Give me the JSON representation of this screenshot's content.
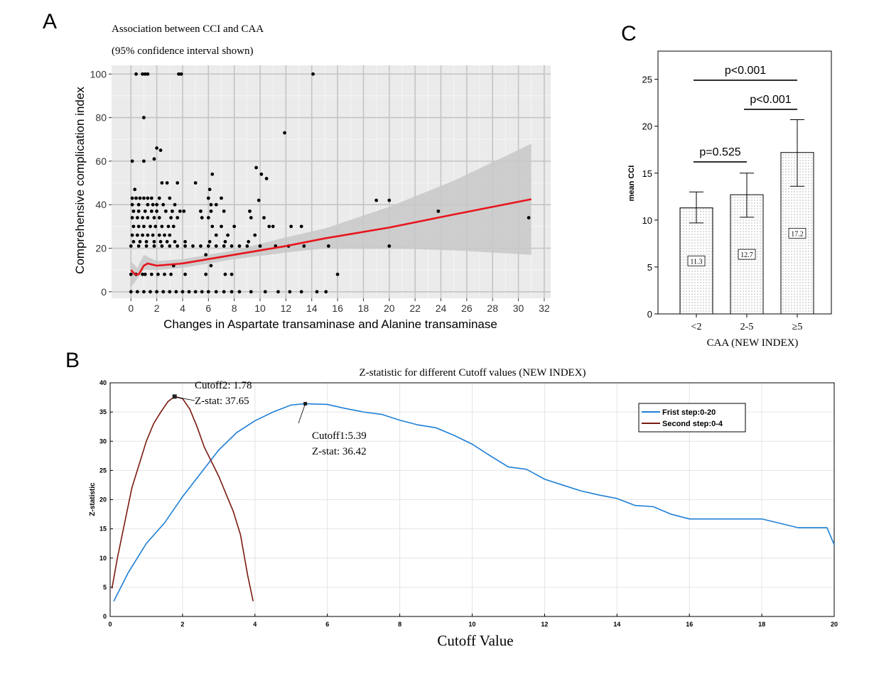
{
  "panel_letters": {
    "a": "A",
    "b": "B",
    "c": "C"
  },
  "chart_data": [
    {
      "panel": "A",
      "type": "scatter",
      "title": "Association between CCI and CAA",
      "subtitle": "(95% confidence interval shown)",
      "xlabel": "Changes in Aspartate transaminase and Alanine transaminase",
      "ylabel": "Comprehensive complication index",
      "xlim": [
        -1.5,
        32.5
      ],
      "ylim": [
        -3,
        104
      ],
      "xticks": [
        0,
        2,
        4,
        6,
        8,
        10,
        12,
        14,
        16,
        18,
        20,
        22,
        24,
        26,
        28,
        30,
        32
      ],
      "yticks": [
        0,
        20,
        40,
        60,
        80,
        100
      ],
      "grid": true,
      "colors": {
        "panel_bg": "#ebebeb",
        "points": "#000000",
        "fit_line": "#e8141c",
        "ci_band": "#c8c8c8"
      },
      "points": [
        [
          0.4,
          100
        ],
        [
          0.9,
          100
        ],
        [
          1.1,
          100
        ],
        [
          1.3,
          100
        ],
        [
          3.7,
          100
        ],
        [
          3.9,
          100
        ],
        [
          14.1,
          100
        ],
        [
          1,
          80
        ],
        [
          11.9,
          73
        ],
        [
          2,
          66
        ],
        [
          2.3,
          65
        ],
        [
          1.8,
          61
        ],
        [
          0.1,
          60
        ],
        [
          1,
          60
        ],
        [
          9.7,
          57
        ],
        [
          10.1,
          54
        ],
        [
          6.3,
          54
        ],
        [
          10.5,
          52
        ],
        [
          3.6,
          50
        ],
        [
          2.4,
          50
        ],
        [
          2.8,
          50
        ],
        [
          0.3,
          47
        ],
        [
          6.1,
          47
        ],
        [
          5,
          50
        ],
        [
          0.1,
          43
        ],
        [
          0.4,
          43
        ],
        [
          0.7,
          43
        ],
        [
          1,
          43
        ],
        [
          1.3,
          43
        ],
        [
          1.6,
          43
        ],
        [
          2.2,
          43
        ],
        [
          3,
          43
        ],
        [
          6,
          43
        ],
        [
          7,
          43
        ],
        [
          9.9,
          42
        ],
        [
          19,
          42
        ],
        [
          20,
          42
        ],
        [
          0.1,
          40
        ],
        [
          0.6,
          40
        ],
        [
          1.3,
          40
        ],
        [
          1.7,
          40
        ],
        [
          2,
          40
        ],
        [
          2.5,
          40
        ],
        [
          3.4,
          40
        ],
        [
          6.2,
          40
        ],
        [
          6.6,
          40
        ],
        [
          0.2,
          37
        ],
        [
          0.6,
          37
        ],
        [
          1.1,
          37
        ],
        [
          1.6,
          37
        ],
        [
          2,
          37
        ],
        [
          2.7,
          37
        ],
        [
          3.2,
          37
        ],
        [
          3.8,
          37
        ],
        [
          4.1,
          37
        ],
        [
          5.4,
          37
        ],
        [
          6.2,
          37
        ],
        [
          7.2,
          37
        ],
        [
          9.2,
          37
        ],
        [
          23.8,
          37
        ],
        [
          0.1,
          34
        ],
        [
          0.5,
          34
        ],
        [
          0.9,
          34
        ],
        [
          1.3,
          34
        ],
        [
          1.8,
          34
        ],
        [
          2.2,
          34
        ],
        [
          3.1,
          34
        ],
        [
          3.6,
          34
        ],
        [
          5.5,
          34
        ],
        [
          6,
          34
        ],
        [
          9.3,
          34
        ],
        [
          10.3,
          34
        ],
        [
          30.8,
          34
        ],
        [
          0.2,
          30
        ],
        [
          0.6,
          30
        ],
        [
          1,
          30
        ],
        [
          1.5,
          30
        ],
        [
          1.9,
          30
        ],
        [
          2.4,
          30
        ],
        [
          2.9,
          30
        ],
        [
          3.3,
          30
        ],
        [
          6.3,
          30
        ],
        [
          7,
          30
        ],
        [
          8,
          30
        ],
        [
          10.7,
          30
        ],
        [
          11,
          30
        ],
        [
          12.4,
          30
        ],
        [
          13.2,
          30
        ],
        [
          0.1,
          26
        ],
        [
          0.5,
          26
        ],
        [
          0.9,
          26
        ],
        [
          1.3,
          26
        ],
        [
          1.7,
          26
        ],
        [
          2.2,
          26
        ],
        [
          2.6,
          26
        ],
        [
          3,
          26
        ],
        [
          6.6,
          26
        ],
        [
          7.5,
          26
        ],
        [
          9.6,
          26
        ],
        [
          0.2,
          23
        ],
        [
          0.7,
          23
        ],
        [
          1.2,
          23
        ],
        [
          1.8,
          23
        ],
        [
          2.3,
          23
        ],
        [
          2.8,
          23
        ],
        [
          3.4,
          23
        ],
        [
          4.2,
          23
        ],
        [
          6.1,
          23
        ],
        [
          7.3,
          23
        ],
        [
          9.1,
          23
        ],
        [
          0,
          21
        ],
        [
          0.6,
          21
        ],
        [
          1.2,
          21
        ],
        [
          1.8,
          21
        ],
        [
          2.4,
          21
        ],
        [
          3,
          21
        ],
        [
          3.6,
          21
        ],
        [
          4.2,
          21
        ],
        [
          4.8,
          21
        ],
        [
          5.4,
          21
        ],
        [
          6,
          21
        ],
        [
          6.6,
          21
        ],
        [
          7.2,
          21
        ],
        [
          7.8,
          21
        ],
        [
          8.4,
          21
        ],
        [
          9,
          21
        ],
        [
          10,
          21
        ],
        [
          11.2,
          21
        ],
        [
          12.2,
          21
        ],
        [
          13.4,
          21
        ],
        [
          15.3,
          21
        ],
        [
          20,
          21
        ],
        [
          5.8,
          17
        ],
        [
          3.3,
          12
        ],
        [
          6.2,
          12
        ],
        [
          0,
          8
        ],
        [
          0.4,
          8
        ],
        [
          0.9,
          8
        ],
        [
          1.1,
          8
        ],
        [
          1.6,
          8
        ],
        [
          2.1,
          8
        ],
        [
          2.6,
          8
        ],
        [
          3.1,
          8
        ],
        [
          4.2,
          8
        ],
        [
          5.8,
          8
        ],
        [
          7.3,
          8
        ],
        [
          7.8,
          8
        ],
        [
          16,
          8
        ],
        [
          0,
          0
        ],
        [
          0.5,
          0
        ],
        [
          1,
          0
        ],
        [
          1.5,
          0
        ],
        [
          2,
          0
        ],
        [
          2.5,
          0
        ],
        [
          3,
          0
        ],
        [
          3.5,
          0
        ],
        [
          4,
          0
        ],
        [
          4.5,
          0
        ],
        [
          5,
          0
        ],
        [
          5.5,
          0
        ],
        [
          6,
          0
        ],
        [
          6.6,
          0
        ],
        [
          7.2,
          0
        ],
        [
          7.8,
          0
        ],
        [
          8.4,
          0
        ],
        [
          9.3,
          0
        ],
        [
          10.4,
          0
        ],
        [
          11.4,
          0
        ],
        [
          12.3,
          0
        ],
        [
          13.2,
          0
        ],
        [
          14.4,
          0
        ],
        [
          15.1,
          0
        ]
      ],
      "fit_line": [
        [
          0,
          10
        ],
        [
          0.3,
          8
        ],
        [
          0.6,
          8
        ],
        [
          1,
          12
        ],
        [
          1.3,
          13
        ],
        [
          2,
          12
        ],
        [
          4,
          13
        ],
        [
          6,
          15
        ],
        [
          8,
          17
        ],
        [
          10,
          19
        ],
        [
          12,
          21
        ],
        [
          15,
          24.5
        ],
        [
          20,
          29.5
        ],
        [
          25,
          35.5
        ],
        [
          31,
          42.5
        ]
      ],
      "ci_band": [
        [
          0,
          2,
          14
        ],
        [
          0.5,
          6,
          11
        ],
        [
          1,
          10,
          17
        ],
        [
          2,
          10,
          14
        ],
        [
          4,
          11,
          15
        ],
        [
          8,
          15,
          19
        ],
        [
          12,
          18,
          25
        ],
        [
          15,
          20,
          29
        ],
        [
          20,
          20,
          39
        ],
        [
          25,
          19,
          51
        ],
        [
          31,
          17,
          68
        ]
      ]
    },
    {
      "panel": "B",
      "type": "line",
      "title": "Z-statistic for different Cutoff values (NEW INDEX)",
      "xlabel": "Cutoff Value",
      "ylabel": "Z-statistic",
      "xlim": [
        0,
        20
      ],
      "ylim": [
        0,
        40
      ],
      "xticks": [
        0,
        2,
        4,
        6,
        8,
        10,
        12,
        14,
        16,
        18,
        20
      ],
      "yticks": [
        0,
        5,
        10,
        15,
        20,
        25,
        30,
        35,
        40
      ],
      "grid": true,
      "legend_position": "top-right",
      "series": [
        {
          "name": "Frist step:0-20",
          "color": "#1e7fd6",
          "points": [
            [
              0.1,
              2.6
            ],
            [
              0.5,
              7.5
            ],
            [
              1,
              12.5
            ],
            [
              1.5,
              16
            ],
            [
              2,
              20.5
            ],
            [
              2.5,
              24.5
            ],
            [
              3,
              28.5
            ],
            [
              3.5,
              31.5
            ],
            [
              4,
              33.5
            ],
            [
              4.5,
              35
            ],
            [
              5,
              36.2
            ],
            [
              5.39,
              36.42
            ],
            [
              6,
              36.3
            ],
            [
              6.5,
              35.6
            ],
            [
              7,
              35
            ],
            [
              7.5,
              34.6
            ],
            [
              8,
              33.6
            ],
            [
              8.5,
              32.8
            ],
            [
              9,
              32.3
            ],
            [
              9.5,
              31
            ],
            [
              10,
              29.5
            ],
            [
              10.5,
              27.5
            ],
            [
              11,
              25.6
            ],
            [
              11.5,
              25.2
            ],
            [
              12,
              23.5
            ],
            [
              12.5,
              22.5
            ],
            [
              13,
              21.5
            ],
            [
              13.5,
              20.8
            ],
            [
              14,
              20.2
            ],
            [
              14.5,
              19
            ],
            [
              15,
              18.8
            ],
            [
              15.5,
              17.5
            ],
            [
              16,
              16.7
            ],
            [
              16.5,
              16.7
            ],
            [
              17,
              16.7
            ],
            [
              18,
              16.7
            ],
            [
              19,
              15.2
            ],
            [
              19.5,
              15.2
            ],
            [
              19.8,
              15.2
            ],
            [
              20,
              12.3
            ]
          ]
        },
        {
          "name": "Second step:0-4",
          "color": "#7a1a10",
          "points": [
            [
              0.05,
              4.8
            ],
            [
              0.2,
              10
            ],
            [
              0.4,
              16
            ],
            [
              0.6,
              22
            ],
            [
              0.8,
              26
            ],
            [
              1,
              30
            ],
            [
              1.2,
              33
            ],
            [
              1.4,
              35
            ],
            [
              1.6,
              36.8
            ],
            [
              1.78,
              37.65
            ],
            [
              2,
              37.3
            ],
            [
              2.2,
              35.5
            ],
            [
              2.4,
              32.5
            ],
            [
              2.6,
              29
            ],
            [
              2.8,
              26.5
            ],
            [
              3,
              24
            ],
            [
              3.2,
              21
            ],
            [
              3.4,
              18
            ],
            [
              3.6,
              14
            ],
            [
              3.8,
              7
            ],
            [
              3.95,
              2.6
            ]
          ]
        }
      ],
      "annotations": [
        {
          "x": 1.78,
          "y": 37.65,
          "line1": "Cutoff2: 1.78",
          "line2": "Z-stat: 37.65"
        },
        {
          "x": 5.39,
          "y": 36.42,
          "line1": "Cutoff1:5.39",
          "line2": "Z-stat: 36.42"
        }
      ]
    },
    {
      "panel": "C",
      "type": "bar",
      "categories": [
        "<2",
        "2-5",
        "≥5"
      ],
      "values": [
        11.3,
        12.7,
        17.2
      ],
      "labels": [
        "11.3",
        "12.7",
        "17.2"
      ],
      "error_low": [
        9.7,
        10.3,
        13.6
      ],
      "error_high": [
        13,
        15,
        20.7
      ],
      "xlabel": "CAA (NEW INDEX)",
      "ylabel": "mean CCI",
      "ylim": [
        0,
        28
      ],
      "yticks": [
        0,
        5,
        10,
        15,
        20,
        25
      ],
      "significance": [
        {
          "from": 0,
          "to": 1,
          "label": "p=0.525",
          "y": 16.2
        },
        {
          "from": 1,
          "to": 2,
          "label": "p<0.001",
          "y": 21.8
        },
        {
          "from": 0,
          "to": 2,
          "label": "p<0.001",
          "y": 24.9
        }
      ]
    }
  ]
}
